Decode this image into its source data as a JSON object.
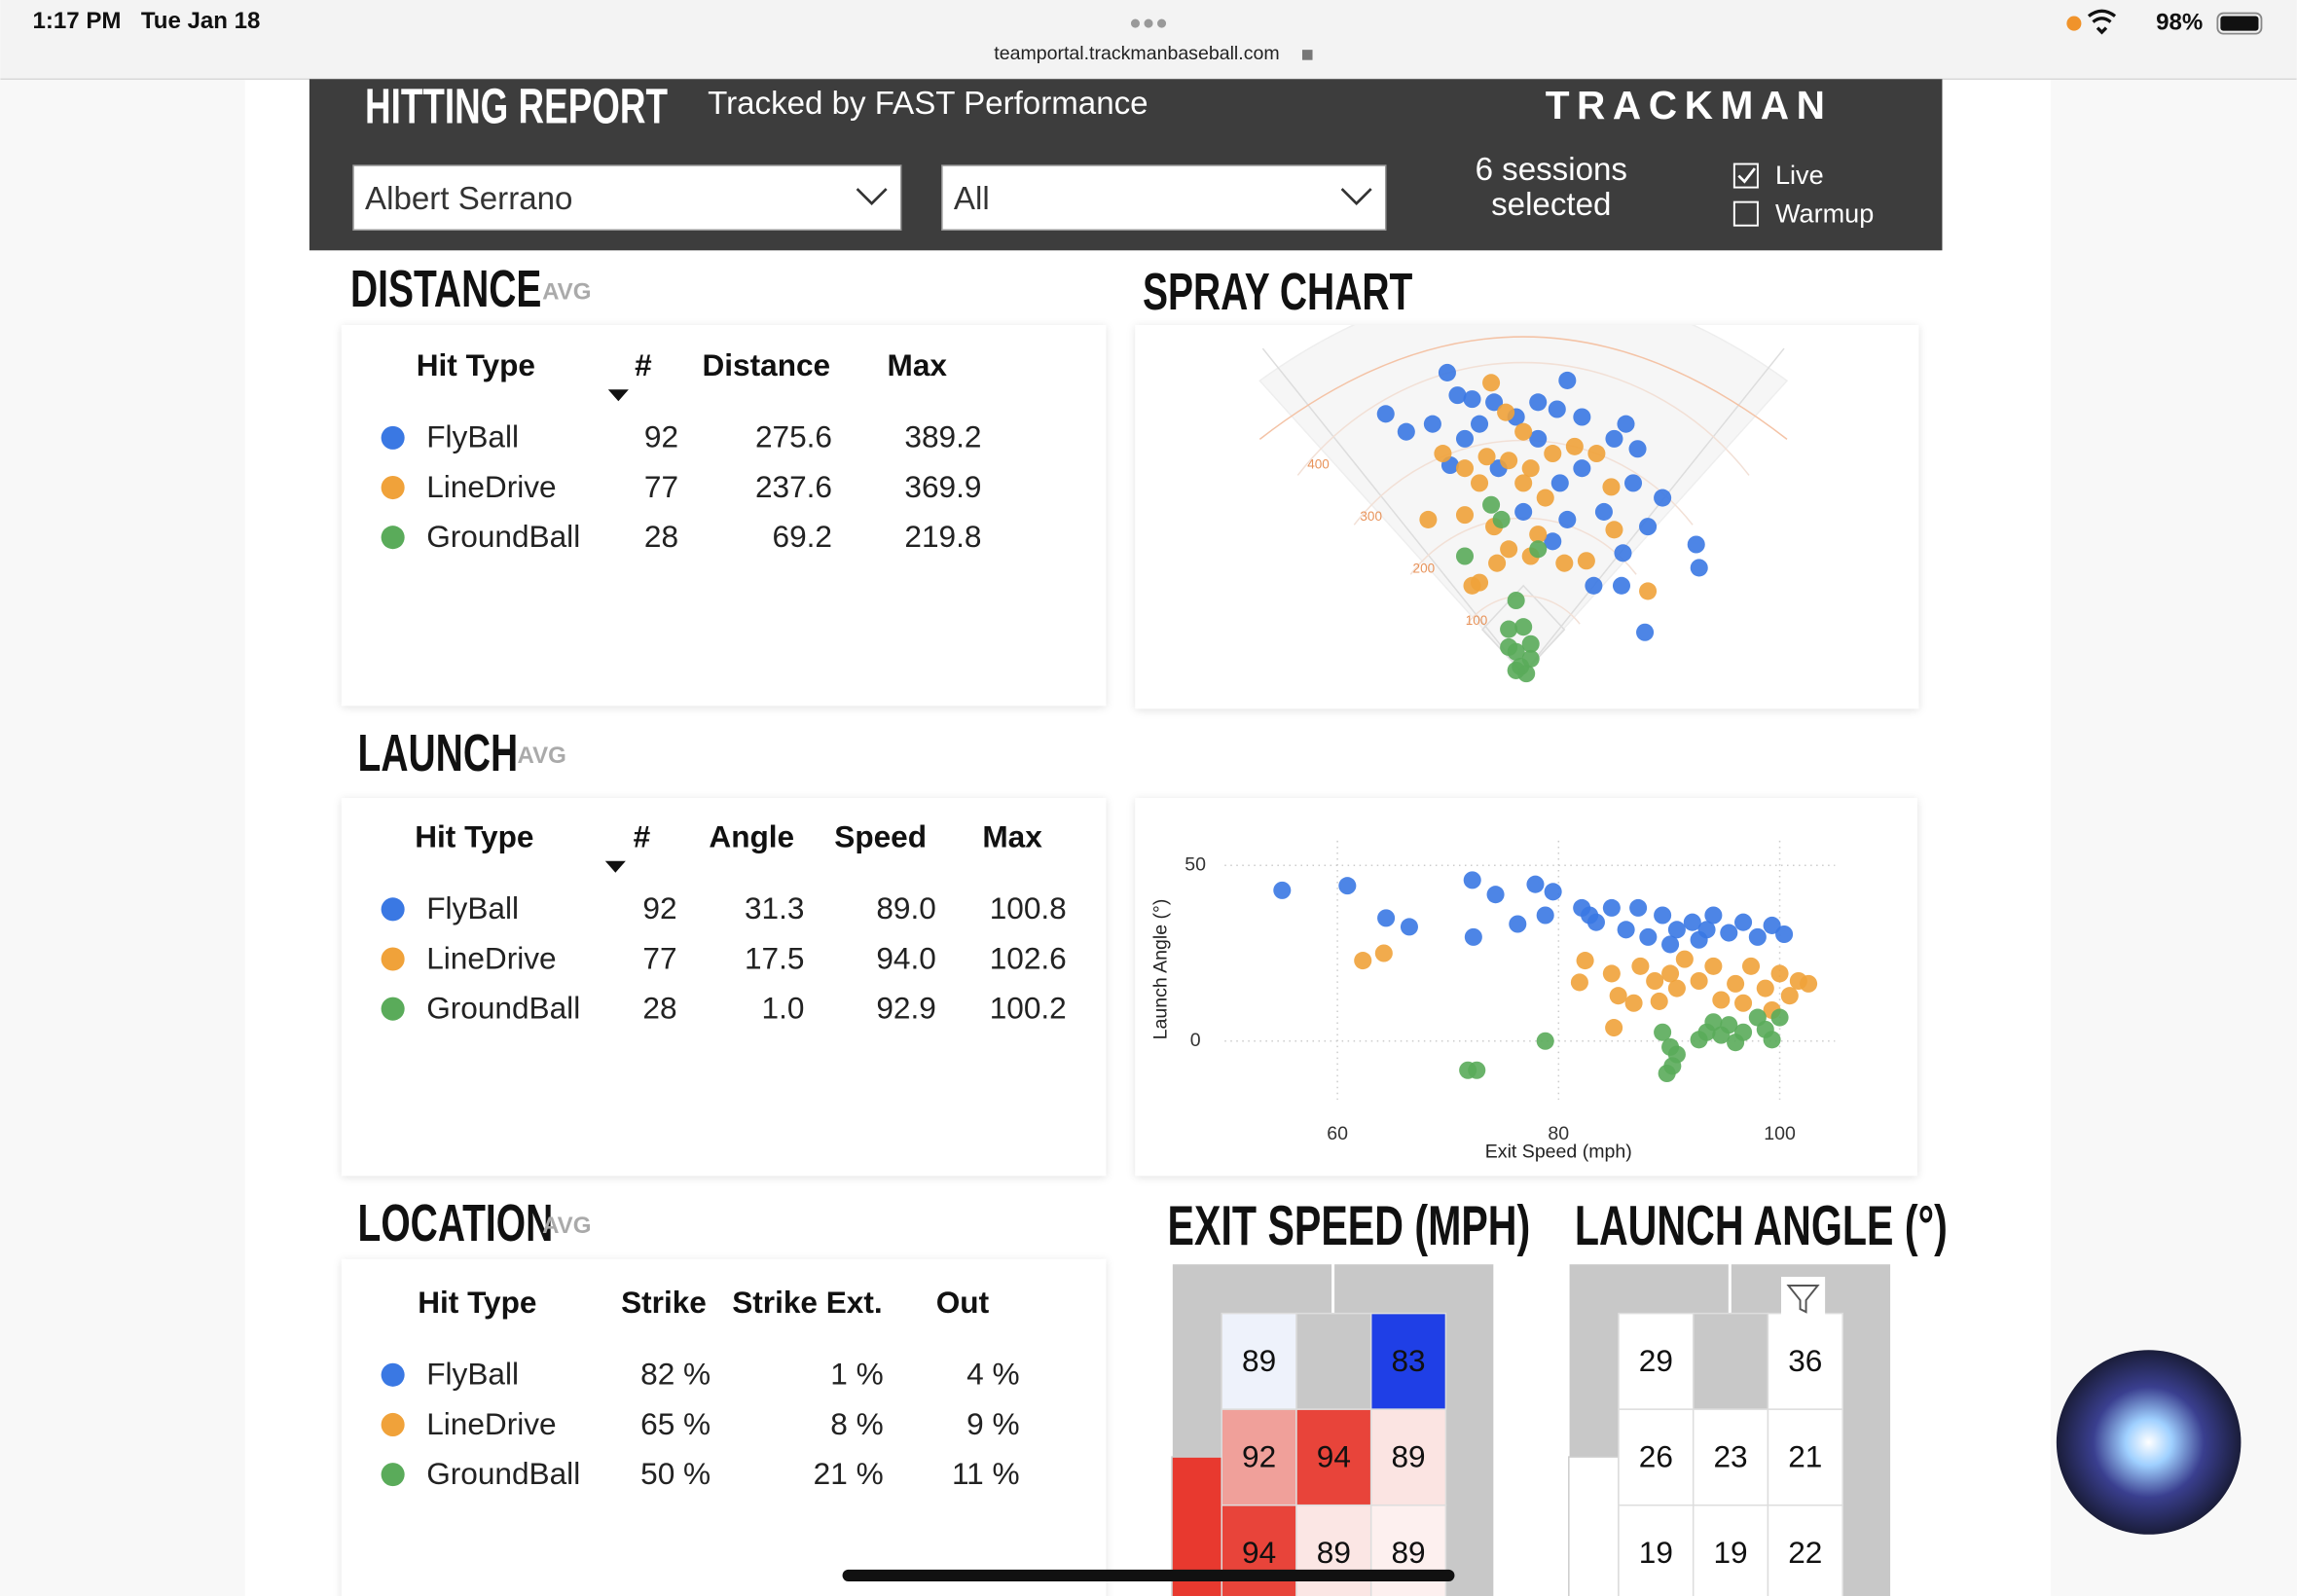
{
  "status_bar": {
    "time": "1:17 PM",
    "date": "Tue Jan 18",
    "url": "teamportal.trackmanbaseball.com",
    "battery": "98%"
  },
  "header": {
    "title": "HITTING REPORT",
    "subtitle": "Tracked by FAST Performance",
    "brand": "TRACKMAN",
    "player": "Albert Serrano",
    "filter": "All",
    "sessions": [
      "6 sessions",
      "selected"
    ],
    "checkboxes": [
      {
        "label": "Live",
        "checked": true
      },
      {
        "label": "Warmup",
        "checked": false
      }
    ]
  },
  "distance": {
    "title": "DISTANCE",
    "tag": "AVG",
    "columns": [
      "Hit Type",
      "#",
      "Distance",
      "Max"
    ],
    "rows": [
      {
        "hit_type": "FlyBall",
        "color": "#3a78e3",
        "cells": [
          "92",
          "275.6",
          "389.2"
        ]
      },
      {
        "hit_type": "LineDrive",
        "color": "#f0a23a",
        "cells": [
          "77",
          "237.6",
          "369.9"
        ]
      },
      {
        "hit_type": "GroundBall",
        "color": "#5aab5a",
        "cells": [
          "28",
          "69.2",
          "219.8"
        ]
      }
    ]
  },
  "launch": {
    "title": "LAUNCH",
    "tag": "AVG",
    "columns": [
      "Hit Type",
      "#",
      "Angle",
      "Speed",
      "Max"
    ],
    "rows": [
      {
        "hit_type": "FlyBall",
        "color": "#3a78e3",
        "cells": [
          "92",
          "31.3",
          "89.0",
          "100.8"
        ]
      },
      {
        "hit_type": "LineDrive",
        "color": "#f0a23a",
        "cells": [
          "77",
          "17.5",
          "94.0",
          "102.6"
        ]
      },
      {
        "hit_type": "GroundBall",
        "color": "#5aab5a",
        "cells": [
          "28",
          "1.0",
          "92.9",
          "100.2"
        ]
      }
    ]
  },
  "location": {
    "title": "LOCATION",
    "tag": "AVG",
    "columns": [
      "Hit Type",
      "Strike",
      "Strike Ext.",
      "Out"
    ],
    "rows": [
      {
        "hit_type": "FlyBall",
        "color": "#3a78e3",
        "cells": [
          "82 %",
          "1 %",
          "4 %"
        ]
      },
      {
        "hit_type": "LineDrive",
        "color": "#f0a23a",
        "cells": [
          "65 %",
          "8 %",
          "9 %"
        ]
      },
      {
        "hit_type": "GroundBall",
        "color": "#5aab5a",
        "cells": [
          "50 %",
          "21 %",
          "11 %"
        ]
      }
    ]
  },
  "chart_data": [
    {
      "type": "spray",
      "title": "SPRAY CHART",
      "rings": [
        100,
        200,
        300,
        400
      ],
      "xlim": [
        -420,
        420
      ],
      "ylim": [
        0,
        420
      ],
      "series": [
        {
          "color": "#3a78e3",
          "x": [
            -104,
            -90,
            -70,
            -40,
            60,
            20,
            46,
            -188,
            -160,
            -124,
            -60,
            -10,
            80,
            124,
            140,
            156,
            -80,
            20,
            80,
            150,
            190,
            0,
            60,
            110,
            170,
            236,
            240,
            136,
            96,
            134,
            166,
            40,
            -100,
            -34,
            50
          ],
          "values": [
            387,
            358,
            353,
            349,
            377,
            349,
            340,
            334,
            311,
            321,
            321,
            330,
            330,
            302,
            321,
            289,
            302,
            302,
            264,
            245,
            226,
            208,
            198,
            208,
            189,
            166,
            136,
            155,
            113,
            113,
            53,
            170,
            268,
            264,
            245
          ]
        },
        {
          "color": "#f0a23a",
          "x": [
            -44,
            -24,
            0,
            -110,
            -80,
            -60,
            -20,
            10,
            40,
            70,
            100,
            30,
            -130,
            -80,
            -40,
            -20,
            10,
            56,
            -70,
            -60,
            120,
            124,
            170,
            20,
            -36,
            86,
            0,
            -50
          ],
          "values": [
            374,
            336,
            311,
            283,
            264,
            245,
            274,
            264,
            283,
            292,
            283,
            226,
            198,
            204,
            189,
            160,
            151,
            142,
            113,
            117,
            240,
            185,
            106,
            179,
            142,
            145,
            245,
            279
          ]
        },
        {
          "color": "#5aab5a",
          "x": [
            -10,
            -20,
            0,
            10,
            -10,
            -4,
            4,
            -20,
            -44,
            -30,
            -80,
            20,
            10,
            -10
          ],
          "values": [
            94,
            57,
            60,
            38,
            28,
            9,
            0,
            34,
            217,
            198,
            151,
            160,
            19,
            4
          ]
        }
      ]
    },
    {
      "type": "scatter",
      "xlabel": "Exit Speed (mph)",
      "ylabel": "Launch Angle (°)",
      "xlim": [
        52,
        105
      ],
      "ylim": [
        -10,
        57
      ],
      "xticks": [
        60,
        80,
        100
      ],
      "yticks": [
        0,
        50
      ],
      "grid": true,
      "series": [
        {
          "color": "#3a78e3",
          "x": [
            55.0,
            60.9,
            64.4,
            66.5,
            72.2,
            74.3,
            72.3,
            76.3,
            77.9,
            79.5,
            78.8,
            82.1,
            83.4,
            84.8,
            86.1,
            87.2,
            88.1,
            89.4,
            90.7,
            92.1,
            92.7,
            94.0,
            95.4,
            96.7,
            98.0,
            99.3,
            100.4,
            82.8,
            90.1,
            93.4
          ],
          "values": [
            42.9,
            44.2,
            35.0,
            32.5,
            45.8,
            41.7,
            29.6,
            33.3,
            44.6,
            42.5,
            35.8,
            37.9,
            33.8,
            37.9,
            31.7,
            37.9,
            29.6,
            35.8,
            31.7,
            33.8,
            28.8,
            35.8,
            30.8,
            33.8,
            29.6,
            32.9,
            30.4,
            35.8,
            27.5,
            31.7
          ]
        },
        {
          "color": "#f0a23a",
          "x": [
            62.3,
            64.2,
            81.9,
            82.4,
            84.8,
            85.4,
            86.8,
            87.4,
            88.7,
            89.1,
            90.1,
            91.4,
            92.7,
            94.0,
            94.7,
            96.0,
            97.4,
            98.7,
            100.0,
            100.9,
            101.7,
            102.6,
            90.7,
            96.7,
            85.0,
            99.3
          ],
          "values": [
            22.9,
            25.0,
            16.7,
            22.9,
            19.2,
            12.9,
            10.8,
            21.3,
            17.1,
            11.3,
            19.2,
            23.3,
            17.1,
            21.3,
            11.7,
            16.3,
            21.3,
            15.0,
            19.2,
            12.9,
            17.1,
            16.3,
            15.0,
            10.8,
            3.8,
            8.8
          ]
        },
        {
          "color": "#5aab5a",
          "x": [
            71.8,
            72.6,
            78.8,
            89.4,
            90.1,
            90.7,
            89.8,
            90.3,
            92.7,
            93.4,
            94.0,
            95.4,
            96.0,
            96.7,
            98.0,
            99.3,
            100.0,
            98.7,
            94.7
          ],
          "values": [
            -8.3,
            -8.3,
            0,
            2.5,
            -1.7,
            -3.8,
            -9.2,
            -7.1,
            0.4,
            2.5,
            5.4,
            4.6,
            -0.4,
            2.5,
            6.7,
            0.4,
            6.7,
            3.3,
            1.7
          ]
        }
      ]
    }
  ],
  "heatmaps": [
    {
      "title": "EXIT SPEED (MPH)",
      "cells": [
        [
          {
            "value": 89,
            "color": "#eef2fb"
          },
          {
            "value": null,
            "color": "#c8c8c8"
          },
          {
            "value": 83,
            "color": "#1f3fe6"
          }
        ],
        [
          {
            "value": 92,
            "color": "#f0a09a"
          },
          {
            "value": 94,
            "color": "#e8443a"
          },
          {
            "value": 89,
            "color": "#fbe4e2"
          }
        ],
        [
          {
            "value": 94,
            "color": "#e8443a"
          },
          {
            "value": 89,
            "color": "#fbe6e4"
          },
          {
            "value": 89,
            "color": "#fdf0ef"
          }
        ]
      ]
    },
    {
      "title": "LAUNCH ANGLE (°)",
      "cells": [
        [
          {
            "value": 29,
            "color": "#ffffff"
          },
          {
            "value": null,
            "color": "#c8c8c8"
          },
          {
            "value": 36,
            "color": "#ffffff"
          }
        ],
        [
          {
            "value": 26,
            "color": "#ffffff"
          },
          {
            "value": 23,
            "color": "#ffffff"
          },
          {
            "value": 21,
            "color": "#ffffff"
          }
        ],
        [
          {
            "value": 19,
            "color": "#ffffff"
          },
          {
            "value": 19,
            "color": "#ffffff"
          },
          {
            "value": 22,
            "color": "#ffffff"
          }
        ]
      ]
    }
  ]
}
